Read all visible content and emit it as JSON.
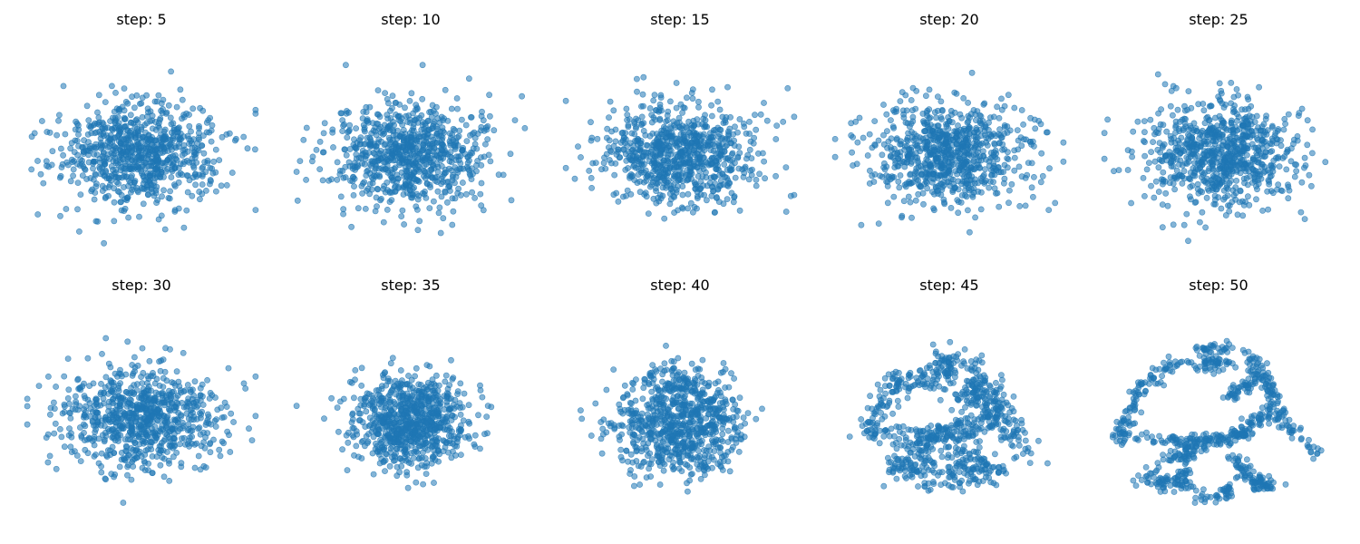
{
  "figure": {
    "marker_color": "#1f77b4",
    "background": "#ffffff"
  },
  "chart_data": [
    {
      "type": "scatter",
      "title": "step: 5",
      "axes": "off",
      "xlim": [
        -3,
        3
      ],
      "ylim": [
        -3,
        3
      ],
      "row": 1,
      "col": 1,
      "pattern": "gaussian",
      "spread": 1.0,
      "seed": 5,
      "n_points": 800
    },
    {
      "type": "scatter",
      "title": "step: 10",
      "axes": "off",
      "xlim": [
        -3,
        3
      ],
      "ylim": [
        -3,
        3
      ],
      "row": 1,
      "col": 2,
      "pattern": "gaussian",
      "spread": 1.0,
      "seed": 10,
      "n_points": 800
    },
    {
      "type": "scatter",
      "title": "step: 15",
      "axes": "off",
      "xlim": [
        -3,
        3
      ],
      "ylim": [
        -3,
        3
      ],
      "row": 1,
      "col": 3,
      "pattern": "gaussian",
      "spread": 1.0,
      "seed": 15,
      "n_points": 800
    },
    {
      "type": "scatter",
      "title": "step: 20",
      "axes": "off",
      "xlim": [
        -3,
        3
      ],
      "ylim": [
        -3,
        3
      ],
      "row": 1,
      "col": 4,
      "pattern": "gaussian",
      "spread": 1.0,
      "seed": 20,
      "n_points": 800
    },
    {
      "type": "scatter",
      "title": "step: 25",
      "axes": "off",
      "xlim": [
        -3,
        3
      ],
      "ylim": [
        -3,
        3
      ],
      "row": 1,
      "col": 5,
      "pattern": "gaussian",
      "spread": 1.0,
      "seed": 25,
      "n_points": 800
    },
    {
      "type": "scatter",
      "title": "step: 30",
      "axes": "off",
      "xlim": [
        -3,
        3
      ],
      "ylim": [
        -3,
        3
      ],
      "row": 2,
      "col": 1,
      "pattern": "gaussian",
      "spread": 1.0,
      "seed": 30,
      "n_points": 800
    },
    {
      "type": "scatter",
      "title": "step: 35",
      "axes": "off",
      "xlim": [
        -3,
        3
      ],
      "ylim": [
        -3,
        3
      ],
      "row": 2,
      "col": 2,
      "pattern": "blend",
      "structure": 0.3,
      "spread": 0.95,
      "seed": 35,
      "n_points": 800
    },
    {
      "type": "scatter",
      "title": "step: 40",
      "axes": "off",
      "xlim": [
        -3,
        3
      ],
      "ylim": [
        -3,
        3
      ],
      "row": 2,
      "col": 3,
      "pattern": "blend",
      "structure": 0.55,
      "spread": 0.85,
      "seed": 40,
      "n_points": 800
    },
    {
      "type": "scatter",
      "title": "step: 45",
      "axes": "off",
      "xlim": [
        -3,
        3
      ],
      "ylim": [
        -3,
        3
      ],
      "row": 2,
      "col": 4,
      "pattern": "blend",
      "structure": 0.8,
      "spread": 0.7,
      "seed": 45,
      "n_points": 800
    },
    {
      "type": "scatter",
      "title": "step: 50",
      "axes": "off",
      "xlim": [
        -3,
        3
      ],
      "ylim": [
        -3,
        3
      ],
      "row": 2,
      "col": 5,
      "pattern": "blend",
      "structure": 1.0,
      "spread": 0.5,
      "seed": 50,
      "n_points": 800
    }
  ]
}
